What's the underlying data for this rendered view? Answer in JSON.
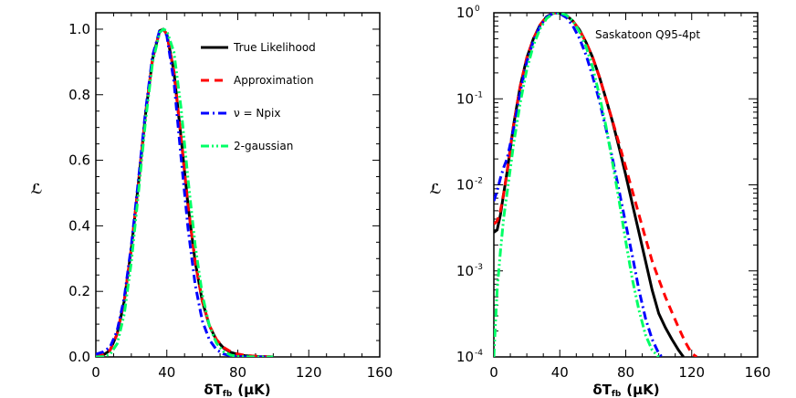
{
  "chart_data": [
    {
      "type": "line",
      "scale": "linear",
      "ylabel": "ℒ",
      "xlabel_main": "δT",
      "xlabel_sub": "fb",
      "xlabel_unit": "(μK)",
      "xlim": [
        0,
        160
      ],
      "ylim": [
        0,
        1.05
      ],
      "xticks": [
        "0",
        "40",
        "80",
        "120",
        "160"
      ],
      "yticks": [
        "0.0",
        "0.2",
        "0.4",
        "0.6",
        "0.8",
        "1.0"
      ],
      "legend": {
        "placement": "top-right"
      },
      "series": [
        {
          "name": "True Likelihood",
          "color": "#000000",
          "dash": "solid",
          "x": [
            0,
            4,
            8,
            12,
            16,
            20,
            24,
            28,
            32,
            36,
            38,
            40,
            44,
            48,
            52,
            56,
            60,
            64,
            68,
            72,
            76,
            80,
            84,
            88,
            92,
            96,
            100
          ],
          "y": [
            0.003,
            0.005,
            0.02,
            0.07,
            0.17,
            0.33,
            0.53,
            0.74,
            0.91,
            0.995,
            1.0,
            0.985,
            0.87,
            0.67,
            0.46,
            0.29,
            0.17,
            0.095,
            0.051,
            0.027,
            0.014,
            0.0075,
            0.004,
            0.002,
            0.001,
            0.0005,
            0.0003
          ]
        },
        {
          "name": "Approximation",
          "color": "#ff0000",
          "dash": "dashed",
          "x": [
            0,
            4,
            8,
            12,
            16,
            20,
            24,
            28,
            32,
            36,
            38,
            40,
            44,
            48,
            52,
            56,
            60,
            64,
            68,
            72,
            76,
            80,
            84,
            88,
            92,
            96,
            100
          ],
          "y": [
            0.004,
            0.006,
            0.02,
            0.07,
            0.17,
            0.33,
            0.53,
            0.74,
            0.91,
            0.995,
            1.0,
            0.985,
            0.87,
            0.67,
            0.46,
            0.29,
            0.17,
            0.096,
            0.053,
            0.029,
            0.016,
            0.009,
            0.005,
            0.003,
            0.0017,
            0.001,
            0.0006
          ]
        },
        {
          "name": "ν = Npix",
          "color": "#0000ff",
          "dash": "dashdot",
          "x": [
            0,
            4,
            8,
            12,
            16,
            20,
            24,
            28,
            32,
            36,
            38,
            40,
            44,
            48,
            52,
            56,
            60,
            64,
            68,
            72,
            76,
            80,
            84,
            88,
            92,
            96,
            100
          ],
          "y": [
            0.008,
            0.015,
            0.03,
            0.08,
            0.18,
            0.34,
            0.54,
            0.75,
            0.92,
            0.997,
            1.0,
            0.98,
            0.84,
            0.61,
            0.39,
            0.22,
            0.11,
            0.052,
            0.022,
            0.009,
            0.0035,
            0.0013,
            0.0005,
            0.0002,
            0.0001,
            0.0001,
            0.0001
          ]
        },
        {
          "name": "2-gaussian",
          "color": "#00ff66",
          "dash": "dashdotdot",
          "x": [
            0,
            4,
            8,
            12,
            16,
            20,
            24,
            28,
            32,
            36,
            38,
            40,
            44,
            48,
            52,
            56,
            60,
            64,
            68,
            72,
            76,
            80,
            84,
            88,
            92,
            96,
            100
          ],
          "y": [
            0.0001,
            0.001,
            0.008,
            0.04,
            0.13,
            0.29,
            0.5,
            0.72,
            0.9,
            0.99,
            1.0,
            0.995,
            0.93,
            0.76,
            0.54,
            0.34,
            0.19,
            0.095,
            0.042,
            0.016,
            0.0055,
            0.0017,
            0.0005,
            0.0002,
            0.0001,
            0.0001,
            0.0001
          ]
        }
      ]
    },
    {
      "type": "line",
      "scale": "log",
      "title": "Saskatoon Q95-4pt",
      "ylabel": "ℒ",
      "xlabel_main": "δT",
      "xlabel_sub": "fb",
      "xlabel_unit": "(μK)",
      "xlim": [
        0,
        160
      ],
      "ylim": [
        0.0001,
        1
      ],
      "xticks": [
        "0",
        "40",
        "80",
        "120",
        "160"
      ],
      "yticks": [
        {
          "base": "10",
          "exp": "0",
          "value": 1
        },
        {
          "base": "10",
          "exp": "-1",
          "value": 0.1
        },
        {
          "base": "10",
          "exp": "-2",
          "value": 0.01
        },
        {
          "base": "10",
          "exp": "-3",
          "value": 0.001
        },
        {
          "base": "10",
          "exp": "-4",
          "value": 0.0001
        }
      ],
      "series": [
        {
          "name": "True Likelihood",
          "color": "#000000",
          "dash": "solid",
          "x": [
            0,
            2,
            4,
            6,
            8,
            12,
            16,
            20,
            24,
            28,
            32,
            36,
            38,
            40,
            44,
            48,
            52,
            56,
            60,
            64,
            68,
            72,
            76,
            80,
            84,
            88,
            92,
            96,
            100,
            104,
            108,
            112,
            115
          ],
          "y": [
            0.0028,
            0.003,
            0.0045,
            0.008,
            0.014,
            0.05,
            0.14,
            0.3,
            0.5,
            0.72,
            0.9,
            0.99,
            1.0,
            0.99,
            0.93,
            0.8,
            0.63,
            0.45,
            0.3,
            0.18,
            0.1,
            0.054,
            0.027,
            0.013,
            0.006,
            0.0028,
            0.0013,
            0.0006,
            0.00032,
            0.00022,
            0.00016,
            0.00012,
            0.0001
          ]
        },
        {
          "name": "Approximation",
          "color": "#ff0000",
          "dash": "dashed",
          "x": [
            0,
            2,
            4,
            6,
            8,
            12,
            16,
            20,
            24,
            28,
            32,
            36,
            38,
            40,
            44,
            48,
            52,
            56,
            60,
            64,
            68,
            72,
            76,
            80,
            84,
            88,
            92,
            96,
            100,
            104,
            108,
            112,
            116,
            120,
            123
          ],
          "y": [
            0.0035,
            0.0038,
            0.005,
            0.008,
            0.014,
            0.05,
            0.14,
            0.3,
            0.5,
            0.72,
            0.9,
            0.99,
            1.0,
            0.99,
            0.93,
            0.8,
            0.63,
            0.45,
            0.3,
            0.18,
            0.1,
            0.055,
            0.03,
            0.016,
            0.0085,
            0.0045,
            0.0024,
            0.0013,
            0.0008,
            0.0005,
            0.00033,
            0.00022,
            0.00015,
            0.00011,
            0.0001
          ]
        },
        {
          "name": "ν = Npix",
          "color": "#0000ff",
          "dash": "dashdot",
          "x": [
            0,
            2,
            4,
            6,
            8,
            12,
            16,
            20,
            24,
            28,
            32,
            36,
            38,
            40,
            44,
            48,
            52,
            56,
            60,
            64,
            68,
            72,
            76,
            80,
            84,
            88,
            92,
            96,
            100,
            102
          ],
          "y": [
            0.0065,
            0.0085,
            0.012,
            0.016,
            0.02,
            0.045,
            0.12,
            0.27,
            0.47,
            0.7,
            0.89,
            0.99,
            1.0,
            0.98,
            0.88,
            0.7,
            0.5,
            0.32,
            0.18,
            0.095,
            0.045,
            0.02,
            0.0085,
            0.0035,
            0.0015,
            0.0006,
            0.00028,
            0.00016,
            0.00011,
            0.0001
          ]
        },
        {
          "name": "2-gaussian",
          "color": "#00ff66",
          "dash": "dashdotdot",
          "x": [
            0,
            1,
            2,
            4,
            6,
            8,
            12,
            16,
            20,
            24,
            28,
            32,
            36,
            38,
            40,
            44,
            48,
            52,
            56,
            60,
            64,
            68,
            72,
            76,
            80,
            84,
            88,
            92,
            96,
            100
          ],
          "y": [
            0.0001,
            0.00025,
            0.0006,
            0.0017,
            0.0042,
            0.008,
            0.03,
            0.09,
            0.22,
            0.42,
            0.65,
            0.86,
            0.98,
            1.0,
            1.0,
            0.94,
            0.8,
            0.6,
            0.4,
            0.23,
            0.11,
            0.048,
            0.018,
            0.0065,
            0.0022,
            0.0008,
            0.00035,
            0.00018,
            0.00012,
            0.0001
          ]
        }
      ]
    }
  ]
}
